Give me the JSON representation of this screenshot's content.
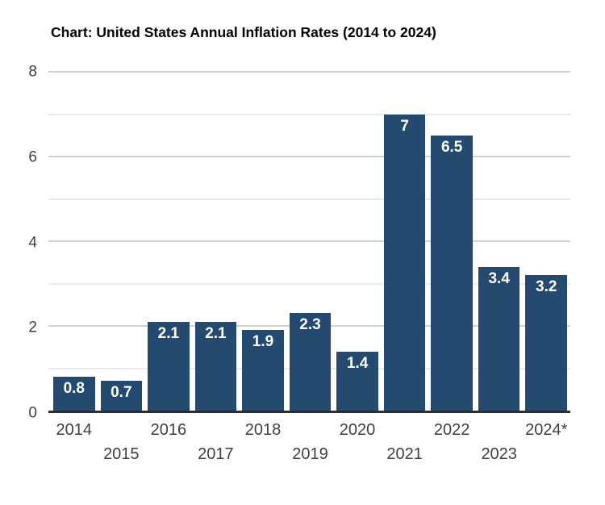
{
  "title": "Chart: United States Annual Inflation Rates (2014 to 2024)",
  "chart_data": {
    "type": "bar",
    "title": "Chart: United States Annual Inflation Rates (2014 to 2024)",
    "categories": [
      "2014",
      "2015",
      "2016",
      "2017",
      "2018",
      "2019",
      "2020",
      "2021",
      "2022",
      "2023",
      "2024*"
    ],
    "values": [
      0.8,
      0.7,
      2.1,
      2.1,
      1.9,
      2.3,
      1.4,
      7,
      6.5,
      3.4,
      3.2
    ],
    "bar_labels": [
      "0.8",
      "0.7",
      "2.1",
      "2.1",
      "1.9",
      "2.3",
      "1.4",
      "7",
      "6.5",
      "3.4",
      "3.2"
    ],
    "xlabel": "",
    "ylabel": "",
    "ylim": [
      0,
      8
    ],
    "ytick_labels": [
      0,
      2,
      4,
      6,
      8
    ],
    "gridline_step": 1,
    "major_gridline_step": 2,
    "grid": "horizontal",
    "legend_position": "none",
    "bar_label_position": "inside-top",
    "xtick_layout": "staggered-two-rows",
    "colors": {
      "bar": "#254a70",
      "bar_label_text": "#ffffff",
      "gridline_major": "#d2d2d2",
      "gridline_minor": "#ebebeb",
      "axis_line": "#2e2e2e",
      "tick_label": "#3f3f3f",
      "title_text": "#000000"
    }
  }
}
